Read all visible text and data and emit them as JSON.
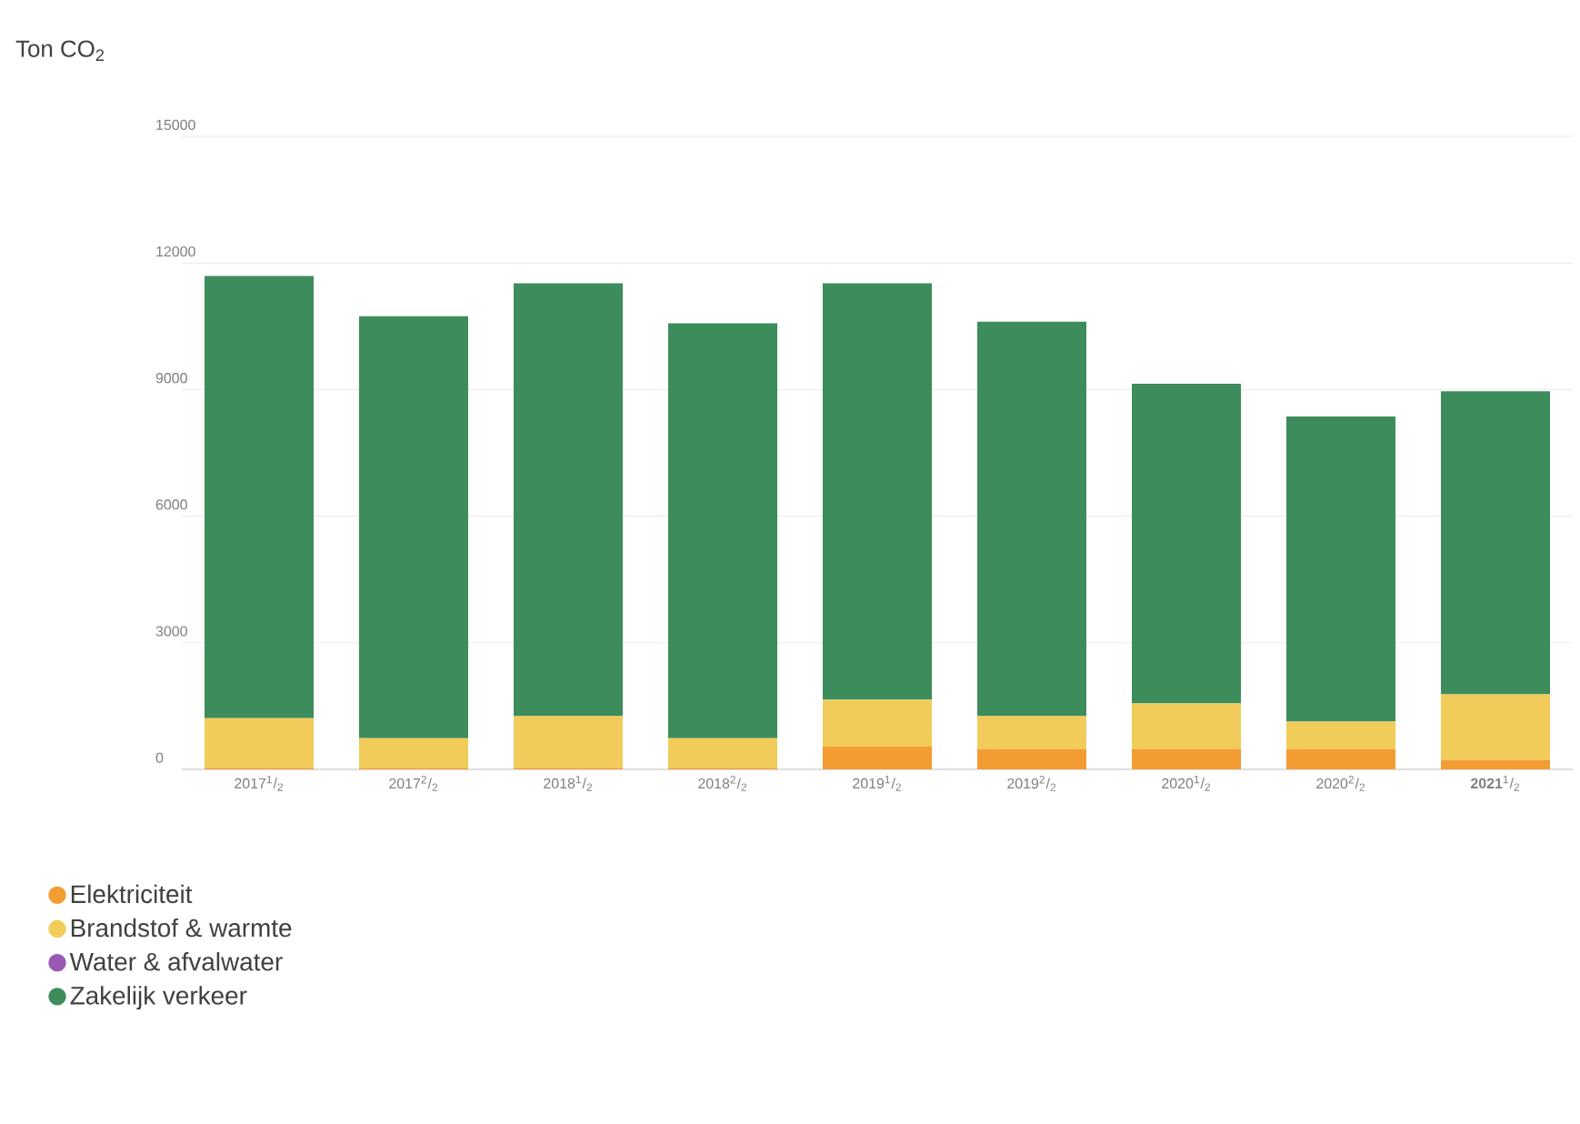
{
  "chart_data": {
    "type": "bar",
    "stacked": true,
    "ylabel": "Ton CO$_{2}$",
    "categories": [
      "2017$^{1}$/$_{2}$",
      "2017$^{2}$/$_{2}$",
      "2018$^{1}$/$_{2}$",
      "2018$^{2}$/$_{2}$",
      "2019$^{1}$/$_{2}$",
      "2019$^{2}$/$_{2}$",
      "2020$^{1}$/$_{2}$",
      "2020$^{2}$/$_{2}$",
      "**2021**$^{1}$/$_{2}$"
    ],
    "series": [
      {
        "name": "Elektriciteit",
        "color": "#f39c32",
        "values": [
          30,
          30,
          30,
          30,
          540,
          480,
          480,
          480,
          220
        ]
      },
      {
        "name": "Brandstof & warmte",
        "color": "#f2cc5a",
        "values": [
          1180,
          710,
          1230,
          710,
          1110,
          780,
          1080,
          650,
          1560
        ]
      },
      {
        "name": "Water & afvalwater",
        "color": "#9b59b6",
        "values": [
          0,
          0,
          0,
          0,
          0,
          0,
          0,
          0,
          0
        ]
      },
      {
        "name": "Zakelijk verkeer",
        "color": "#3d8c5c",
        "values": [
          10480,
          10000,
          10260,
          9830,
          9870,
          9350,
          7580,
          7230,
          7180
        ]
      }
    ],
    "ylim": [
      0,
      15000
    ],
    "yticks": [
      0,
      3000,
      6000,
      9000,
      12000,
      15000
    ],
    "grid": "y",
    "legend": "bottom left"
  }
}
